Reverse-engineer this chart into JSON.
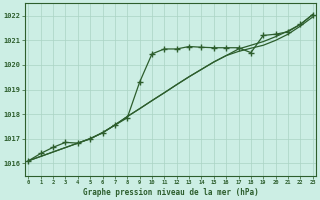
{
  "title": "Graphe pression niveau de la mer (hPa)",
  "background_color": "#cceee4",
  "grid_color": "#aad4c4",
  "line_color": "#2d5e2d",
  "hours": [
    0,
    1,
    2,
    3,
    4,
    5,
    6,
    7,
    8,
    9,
    10,
    11,
    12,
    13,
    14,
    15,
    16,
    17,
    18,
    19,
    20,
    21,
    22,
    23
  ],
  "s_curved": [
    1016.1,
    1016.4,
    1016.65,
    1016.85,
    1016.82,
    1017.0,
    1017.25,
    1017.55,
    1017.85,
    1019.3,
    1020.45,
    1020.65,
    1020.65,
    1020.75,
    1020.72,
    1020.7,
    1020.7,
    1020.7,
    1020.5,
    1021.2,
    1021.25,
    1021.35,
    1021.65,
    1022.05
  ],
  "s_trend1": [
    1016.1,
    1016.28,
    1016.46,
    1016.64,
    1016.82,
    1017.0,
    1017.24,
    1017.56,
    1017.9,
    1018.22,
    1018.55,
    1018.87,
    1019.2,
    1019.52,
    1019.82,
    1020.12,
    1020.38,
    1020.55,
    1020.68,
    1020.8,
    1021.0,
    1021.25,
    1021.58,
    1021.95
  ],
  "s_trend2": [
    1016.1,
    1016.28,
    1016.46,
    1016.64,
    1016.82,
    1017.0,
    1017.24,
    1017.56,
    1017.9,
    1018.22,
    1018.55,
    1018.87,
    1019.2,
    1019.52,
    1019.82,
    1020.12,
    1020.38,
    1020.65,
    1020.8,
    1020.95,
    1021.15,
    1021.38,
    1021.65,
    1022.05
  ],
  "ylim": [
    1015.5,
    1022.5
  ],
  "yticks": [
    1016,
    1017,
    1018,
    1019,
    1020,
    1021,
    1022
  ],
  "xlim": [
    -0.3,
    23.3
  ]
}
